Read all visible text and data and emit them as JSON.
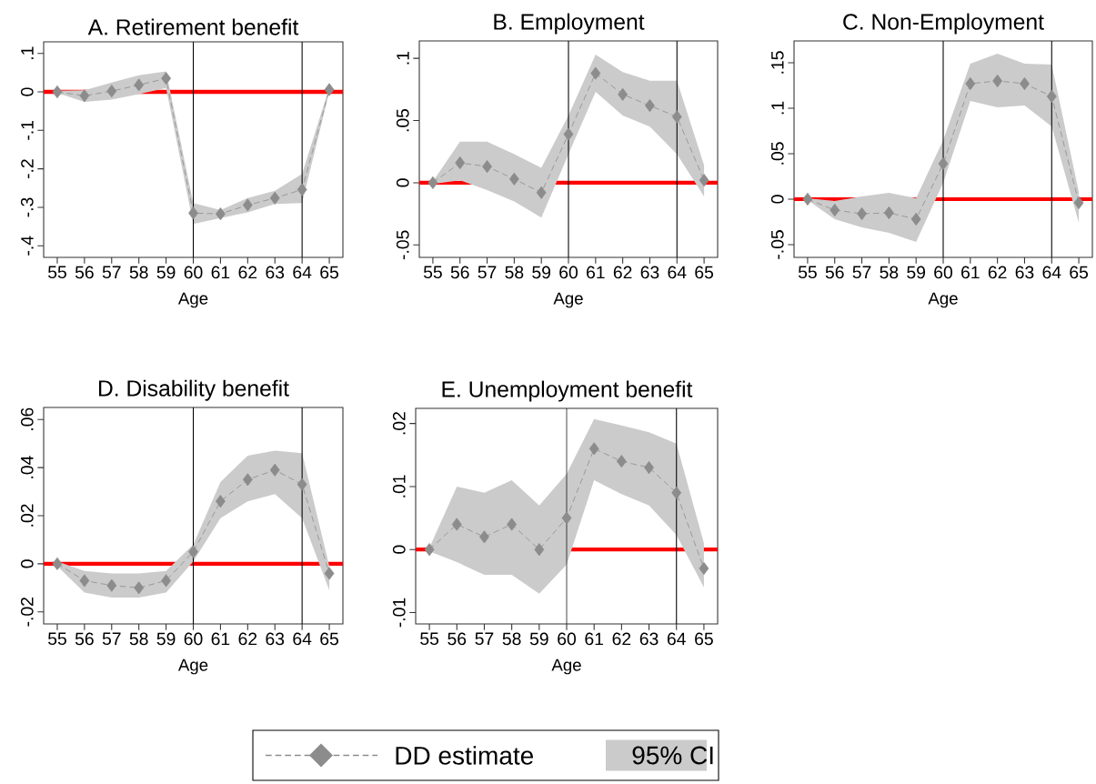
{
  "chart_data": [
    {
      "type": "line",
      "title": "A. Retirement benefit",
      "xlabel": "Age",
      "x": [
        55,
        56,
        57,
        58,
        59,
        60,
        61,
        62,
        63,
        64,
        65
      ],
      "xlim": [
        54.5,
        65.5
      ],
      "xticks": [
        55,
        56,
        57,
        58,
        59,
        60,
        61,
        62,
        63,
        64,
        65
      ],
      "ylim": [
        -0.43,
        0.13
      ],
      "yticks": [
        {
          "value": -0.4,
          "label": "-.4"
        },
        {
          "value": -0.3,
          "label": "-.3"
        },
        {
          "value": -0.2,
          "label": "-.2"
        },
        {
          "value": -0.1,
          "label": "-.1"
        },
        0,
        {
          "value": 0.1,
          "label": ".1"
        }
      ],
      "marker": "diamond",
      "line_style": "dashed",
      "series": [
        {
          "color": "#8c8c8c",
          "values": [
            0,
            -0.01,
            0.002,
            0.018,
            0.035,
            -0.315,
            -0.317,
            -0.294,
            -0.276,
            -0.254,
            0.006
          ],
          "lower": [
            -0.003,
            -0.026,
            -0.02,
            -0.006,
            0.01,
            -0.343,
            -0.328,
            -0.313,
            -0.291,
            -0.289,
            0.0
          ],
          "upper": [
            0.003,
            0.004,
            0.024,
            0.043,
            0.053,
            -0.289,
            -0.307,
            -0.276,
            -0.257,
            -0.213,
            0.012
          ]
        }
      ],
      "ref_lines": [
        {
          "axis": "y",
          "value": 0,
          "color": "#ff0000"
        },
        {
          "axis": "x",
          "value": 60,
          "color": "#000000"
        },
        {
          "axis": "x",
          "value": 64,
          "color": "#000000"
        }
      ]
    },
    {
      "type": "line",
      "title": "B. Employment",
      "xlabel": "Age",
      "x": [
        55,
        56,
        57,
        58,
        59,
        60,
        61,
        62,
        63,
        64,
        65
      ],
      "xlim": [
        54.5,
        65.5
      ],
      "xticks": [
        55,
        56,
        57,
        58,
        59,
        60,
        61,
        62,
        63,
        64,
        65
      ],
      "ylim": [
        -0.06,
        0.114
      ],
      "yticks": [
        {
          "value": -0.05,
          "label": "-.05"
        },
        0,
        {
          "value": 0.05,
          "label": ".05"
        },
        {
          "value": 0.1,
          "label": ".1"
        }
      ],
      "marker": "diamond",
      "line_style": "dashed",
      "series": [
        {
          "color": "#8c8c8c",
          "values": [
            0,
            0.016,
            0.013,
            0.003,
            -0.008,
            0.039,
            0.088,
            0.071,
            0.062,
            0.053,
            0.002
          ],
          "lower": [
            -0.001,
            0.002,
            -0.006,
            -0.015,
            -0.028,
            0.023,
            0.073,
            0.054,
            0.045,
            0.023,
            -0.011
          ],
          "upper": [
            0.001,
            0.033,
            0.033,
            0.023,
            0.012,
            0.054,
            0.103,
            0.089,
            0.082,
            0.082,
            0.014
          ]
        }
      ],
      "ref_lines": [
        {
          "axis": "y",
          "value": 0,
          "color": "#ff0000"
        },
        {
          "axis": "x",
          "value": 60,
          "color": "#000000"
        },
        {
          "axis": "x",
          "value": 64,
          "color": "#000000"
        }
      ]
    },
    {
      "type": "line",
      "title": "C. Non-Employment",
      "xlabel": "Age",
      "x": [
        55,
        56,
        57,
        58,
        59,
        60,
        61,
        62,
        63,
        64,
        65
      ],
      "xlim": [
        54.5,
        65.5
      ],
      "xticks": [
        55,
        56,
        57,
        58,
        59,
        60,
        61,
        62,
        63,
        64,
        65
      ],
      "ylim": [
        -0.064,
        0.174
      ],
      "yticks": [
        {
          "value": -0.05,
          "label": "-.05"
        },
        0,
        {
          "value": 0.05,
          "label": ".05"
        },
        {
          "value": 0.1,
          "label": ".1"
        },
        {
          "value": 0.15,
          "label": ".15"
        }
      ],
      "marker": "diamond",
      "line_style": "dashed",
      "series": [
        {
          "color": "#8c8c8c",
          "values": [
            0,
            -0.012,
            -0.016,
            -0.015,
            -0.022,
            0.039,
            0.127,
            0.13,
            0.127,
            0.113,
            -0.004
          ],
          "lower": [
            -0.001,
            -0.022,
            -0.031,
            -0.037,
            -0.047,
            0.018,
            0.108,
            0.101,
            0.103,
            0.08,
            -0.026
          ],
          "upper": [
            0.001,
            -0.002,
            0.003,
            0.007,
            0.001,
            0.065,
            0.149,
            0.16,
            0.149,
            0.148,
            0.008
          ]
        }
      ],
      "ref_lines": [
        {
          "axis": "y",
          "value": 0,
          "color": "#ff0000"
        },
        {
          "axis": "x",
          "value": 60,
          "color": "#000000"
        },
        {
          "axis": "x",
          "value": 64,
          "color": "#000000"
        }
      ]
    },
    {
      "type": "line",
      "title": "D. Disability benefit",
      "xlabel": "Age",
      "x": [
        55,
        56,
        57,
        58,
        59,
        60,
        61,
        62,
        63,
        64,
        65
      ],
      "xlim": [
        54.5,
        65.5
      ],
      "xticks": [
        55,
        56,
        57,
        58,
        59,
        60,
        61,
        62,
        63,
        64,
        65
      ],
      "ylim": [
        -0.025,
        0.065
      ],
      "yticks": [
        {
          "value": -0.02,
          "label": "-.02"
        },
        0,
        {
          "value": 0.02,
          "label": ".02"
        },
        {
          "value": 0.04,
          "label": ".04"
        },
        {
          "value": 0.06,
          "label": ".06"
        }
      ],
      "marker": "diamond",
      "line_style": "dashed",
      "series": [
        {
          "color": "#8c8c8c",
          "values": [
            0,
            -0.007,
            -0.009,
            -0.01,
            -0.007,
            0.005,
            0.026,
            0.035,
            0.039,
            0.033,
            -0.004
          ],
          "lower": [
            -0.001,
            -0.012,
            -0.014,
            -0.014,
            -0.012,
            0.001,
            0.019,
            0.026,
            0.029,
            0.019,
            -0.011
          ],
          "upper": [
            0.001,
            -0.003,
            -0.004,
            -0.004,
            -0.003,
            0.008,
            0.034,
            0.045,
            0.047,
            0.046,
            -0.001
          ]
        }
      ],
      "ref_lines": [
        {
          "axis": "y",
          "value": 0,
          "color": "#ff0000"
        },
        {
          "axis": "x",
          "value": 60,
          "color": "#000000"
        },
        {
          "axis": "x",
          "value": 64,
          "color": "#000000"
        }
      ]
    },
    {
      "type": "line",
      "title": "E. Unemployment benefit",
      "xlabel": "Age",
      "x": [
        55,
        56,
        57,
        58,
        59,
        60,
        61,
        62,
        63,
        64,
        65
      ],
      "xlim": [
        54.5,
        65.5
      ],
      "xticks": [
        55,
        56,
        57,
        58,
        59,
        60,
        61,
        62,
        63,
        64,
        65
      ],
      "ylim": [
        -0.0118,
        0.0224
      ],
      "yticks": [
        {
          "value": -0.01,
          "label": "-.01"
        },
        0,
        {
          "value": 0.01,
          "label": ".01"
        },
        {
          "value": 0.02,
          "label": ".02"
        }
      ],
      "marker": "diamond",
      "line_style": "dashed",
      "legend": "bottom",
      "annotations": [
        "95% CI"
      ],
      "series": [
        {
          "name": "DD estimate",
          "color": "#8c8c8c",
          "values": [
            0,
            0.004,
            0.002,
            0.004,
            0,
            0.005,
            0.016,
            0.014,
            0.013,
            0.009,
            -0.003
          ],
          "lower": [
            -0.0003,
            -0.002,
            -0.004,
            -0.004,
            -0.007,
            -0.0024,
            0.011,
            0.0088,
            0.007,
            0.0023,
            -0.006
          ],
          "upper": [
            0.0003,
            0.01,
            0.009,
            0.011,
            0.007,
            0.012,
            0.0207,
            0.0197,
            0.0186,
            0.0168,
            0.001
          ]
        }
      ],
      "ref_lines": [
        {
          "axis": "y",
          "value": 0,
          "color": "#ff0000"
        },
        {
          "axis": "x",
          "value": 60,
          "color": "#000000"
        },
        {
          "axis": "x",
          "value": 64,
          "color": "#000000"
        }
      ]
    }
  ]
}
